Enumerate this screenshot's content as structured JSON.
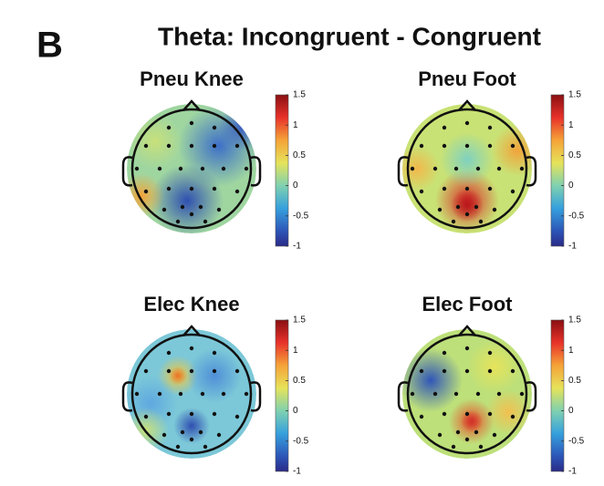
{
  "panel_label": "B",
  "title": "Theta: Incongruent - Congruent",
  "panels": [
    {
      "title": "Pneu Knee",
      "colorbar": {
        "lim": [
          -1,
          1.5
        ],
        "ticks": [
          1.5,
          1,
          0.5,
          0,
          -0.5,
          -1
        ]
      }
    },
    {
      "title": "Pneu Foot",
      "colorbar": {
        "lim": [
          -1,
          1.5
        ],
        "ticks": [
          1.5,
          1,
          0.5,
          0,
          -0.5,
          -1
        ]
      }
    },
    {
      "title": "Elec Knee",
      "colorbar": {
        "lim": [
          -1,
          1.5
        ],
        "ticks": [
          1.5,
          1,
          0.5,
          0,
          -0.5,
          -1
        ]
      }
    },
    {
      "title": "Elec Foot",
      "colorbar": {
        "lim": [
          -1,
          1.5
        ],
        "ticks": [
          1.5,
          1,
          0.5,
          0,
          -0.5,
          -1
        ]
      }
    }
  ]
}
